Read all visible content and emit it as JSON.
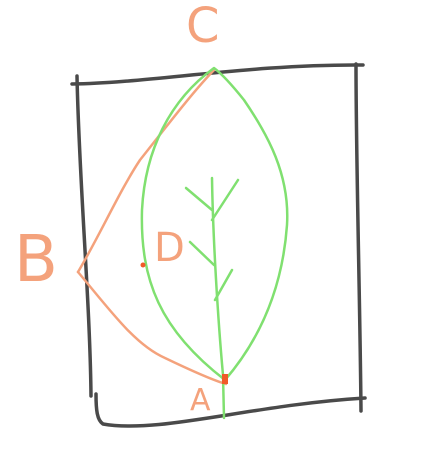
{
  "labels": {
    "c": "C",
    "b": "B",
    "d": "D",
    "a": "A"
  },
  "colors": {
    "frame": "#4a4a4a",
    "leaf": "#80e070",
    "outline": "#f4a27c",
    "marker": "#f05a28",
    "background": "#ffffff"
  }
}
